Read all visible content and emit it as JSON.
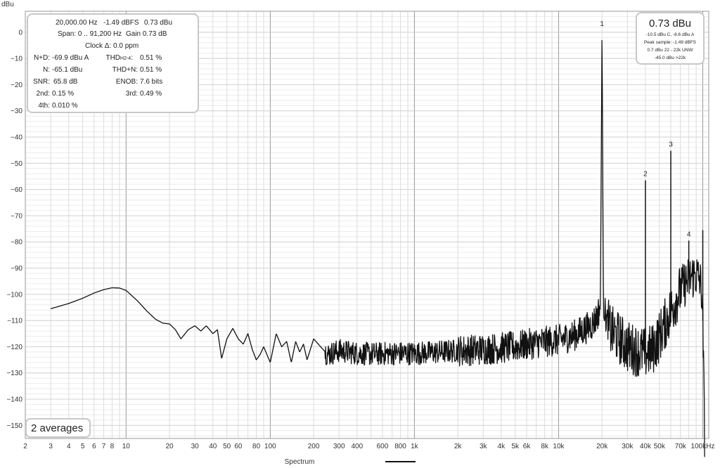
{
  "chart_data": {
    "type": "line",
    "ylabel": "dBu",
    "xlabel": "Spectrum",
    "x_scale": "log",
    "xlim": [
      2,
      110000
    ],
    "ylim": [
      -155,
      8
    ],
    "y_ticks": [
      0,
      -10,
      -20,
      -30,
      -40,
      -50,
      -60,
      -70,
      -80,
      -90,
      -100,
      -110,
      -120,
      -130,
      -140,
      -150
    ],
    "x_ticks": [
      {
        "v": 2,
        "label": "2"
      },
      {
        "v": 3,
        "label": "3"
      },
      {
        "v": 4,
        "label": "4"
      },
      {
        "v": 5,
        "label": "5"
      },
      {
        "v": 6,
        "label": "6"
      },
      {
        "v": 7,
        "label": "7"
      },
      {
        "v": 8,
        "label": "8"
      },
      {
        "v": 10,
        "label": "10"
      },
      {
        "v": 20,
        "label": "20"
      },
      {
        "v": 30,
        "label": "30"
      },
      {
        "v": 40,
        "label": "40"
      },
      {
        "v": 50,
        "label": "50"
      },
      {
        "v": 60,
        "label": "60"
      },
      {
        "v": 80,
        "label": "80"
      },
      {
        "v": 100,
        "label": "100"
      },
      {
        "v": 200,
        "label": "200"
      },
      {
        "v": 300,
        "label": "300"
      },
      {
        "v": 400,
        "label": "400"
      },
      {
        "v": 600,
        "label": "600"
      },
      {
        "v": 800,
        "label": "800"
      },
      {
        "v": 1000,
        "label": "1k"
      },
      {
        "v": 2000,
        "label": "2k"
      },
      {
        "v": 3000,
        "label": "3k"
      },
      {
        "v": 4000,
        "label": "4k"
      },
      {
        "v": 5000,
        "label": "5k"
      },
      {
        "v": 6000,
        "label": "6k"
      },
      {
        "v": 8000,
        "label": "8k"
      },
      {
        "v": 10000,
        "label": "10k"
      },
      {
        "v": 20000,
        "label": "20k"
      },
      {
        "v": 30000,
        "label": "30k"
      },
      {
        "v": 40000,
        "label": "40k"
      },
      {
        "v": 50000,
        "label": "50k"
      },
      {
        "v": 70000,
        "label": "70k"
      },
      {
        "v": 100000,
        "label": "100kHz"
      }
    ],
    "grid": true,
    "series": [
      {
        "color": "#111111",
        "x": [
          3,
          4,
          5,
          6,
          7,
          8,
          9,
          10,
          12,
          14,
          16,
          18,
          20,
          22,
          24,
          27,
          30,
          33,
          36,
          40,
          43,
          46,
          50,
          55,
          60,
          65,
          70,
          75,
          80,
          85,
          90,
          100,
          110,
          120,
          130,
          140,
          150,
          160,
          170,
          180,
          200,
          250,
          300,
          400,
          500,
          700,
          1000,
          1500,
          2000,
          3000,
          5000,
          7000,
          10000,
          13000,
          15000,
          17000,
          18500,
          19500,
          20000,
          20500,
          21500,
          23000,
          26000,
          30000,
          35000,
          40000,
          45000,
          50000,
          55000,
          60000,
          65000,
          70000,
          75000,
          80000,
          85000,
          90000,
          95000,
          98000,
          100000,
          103000
        ],
        "y": [
          -105.5,
          -103.5,
          -101.5,
          -99.5,
          -98.2,
          -97.5,
          -97.6,
          -98.5,
          -102.5,
          -106.5,
          -109.5,
          -111,
          -111.3,
          -113.5,
          -117,
          -113.5,
          -112,
          -114,
          -112,
          -115,
          -113.5,
          -124.5,
          -117,
          -113,
          -117,
          -119,
          -115,
          -121,
          -125,
          -123,
          -120,
          -126,
          -115,
          -120,
          -118,
          -126,
          -118,
          -122,
          -119,
          -125,
          -117,
          -123,
          -121.5,
          -122.5,
          -122.8,
          -122.5,
          -122.5,
          -122,
          -121.5,
          -121,
          -120,
          -118.5,
          -117.5,
          -115.5,
          -113.5,
          -111.5,
          -108.5,
          -104,
          0.73,
          -104,
          -110,
          -114,
          -116.5,
          -120,
          -121.5,
          -122.5,
          -121,
          -116,
          -111,
          -106.5,
          -102,
          -98.5,
          -96,
          -94.5,
          -93,
          -92.5,
          -94.5,
          -98,
          -110,
          -154
        ]
      }
    ],
    "peaks": [
      {
        "label": "1",
        "x": 20000,
        "y": 0.73
      },
      {
        "label": "2",
        "x": 40000,
        "y": -56.5
      },
      {
        "label": "3",
        "x": 60000,
        "y": -45.2
      },
      {
        "label": "4",
        "x": 80000,
        "y": -79.5
      },
      {
        "label": "",
        "x": 100000,
        "y": -75.5
      }
    ]
  },
  "info_box": {
    "line1_freq": "20,000.00 Hz",
    "line1_dbfs": "-1.49 dBFS",
    "line1_dbu": "0.73 dBu",
    "span": "Span: 0 .. 91,200 Hz",
    "gain": "Gain 0.73 dB",
    "clock": "Clock Δ: 0.0 ppm",
    "nd_label": "N+D:",
    "nd_value": "-69.9 dBu A",
    "thd_label": "THD",
    "thd_sub": "H2-4",
    "thd_value": "0.51 %",
    "n_label": "N:",
    "n_value": "-65.1 dBu",
    "thdn_label": "THD+N:",
    "thdn_value": "0.51 %",
    "snr_label": "SNR:",
    "snr_value": "65.8 dB",
    "enob_label": "ENOB:",
    "enob_value": "7.6 bits",
    "h2_label": "2nd:",
    "h2_value": "0.15 %",
    "h3_label": "3rd:",
    "h3_value": "0.49 %",
    "h4_label": "4th:",
    "h4_value": "0.010 %"
  },
  "level_box": {
    "main": "0.73 dBu",
    "line1": "-10.5 dBu C, -8.6 dBu A",
    "line2": "Peak sample: -1.49 dBFS",
    "line3": "0.7 dBu 22 - 22k UNW",
    "line4": "-45.0 dBu >22k"
  },
  "averages_box": {
    "text": "2 averages"
  },
  "legend": {
    "label": "Spectrum",
    "color": "#111111"
  }
}
